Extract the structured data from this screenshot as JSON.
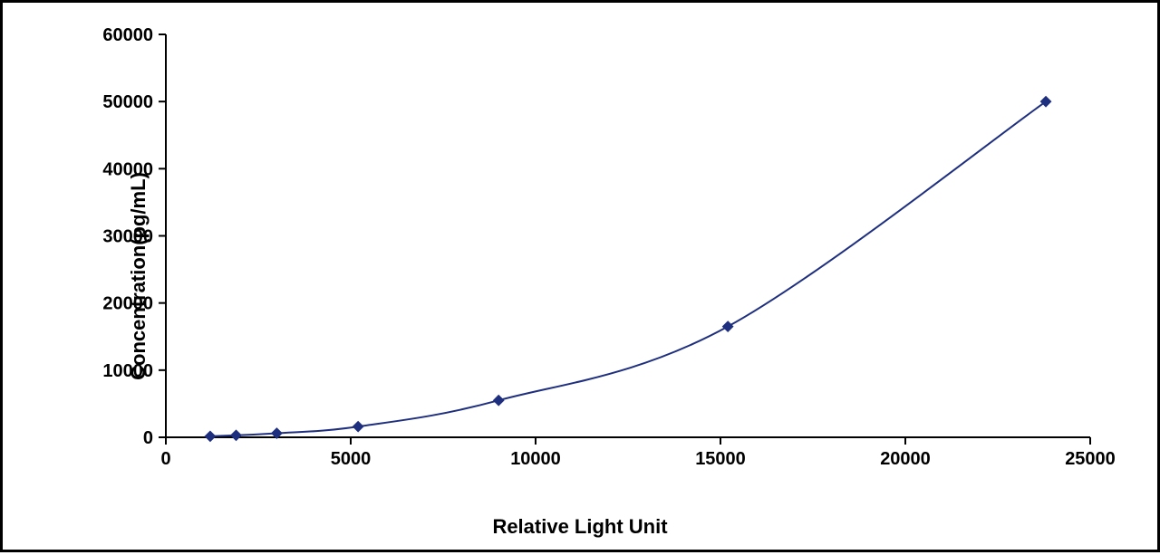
{
  "chart": {
    "type": "line",
    "xlabel": "Relative Light Unit",
    "ylabel": "Concentration(pg/mL)",
    "background_color": "#ffffff",
    "border_color": "#000000",
    "line_color": "#1f2f7f",
    "marker_color": "#1f2f7f",
    "marker_style": "diamond",
    "marker_size": 8,
    "line_width": 2,
    "axis_color": "#000000",
    "label_fontsize": 22,
    "tick_fontsize": 20,
    "font_weight": "bold",
    "xlim": [
      0,
      25000
    ],
    "ylim": [
      0,
      60000
    ],
    "xtick_step": 5000,
    "ytick_step": 10000,
    "xticks": [
      0,
      5000,
      10000,
      15000,
      20000,
      25000
    ],
    "yticks": [
      0,
      10000,
      20000,
      30000,
      40000,
      50000,
      60000
    ],
    "data_points": [
      {
        "x": 1200,
        "y": 150
      },
      {
        "x": 1900,
        "y": 300
      },
      {
        "x": 3000,
        "y": 600
      },
      {
        "x": 5200,
        "y": 1600
      },
      {
        "x": 9000,
        "y": 5500
      },
      {
        "x": 15200,
        "y": 16500
      },
      {
        "x": 23800,
        "y": 50000
      }
    ]
  }
}
